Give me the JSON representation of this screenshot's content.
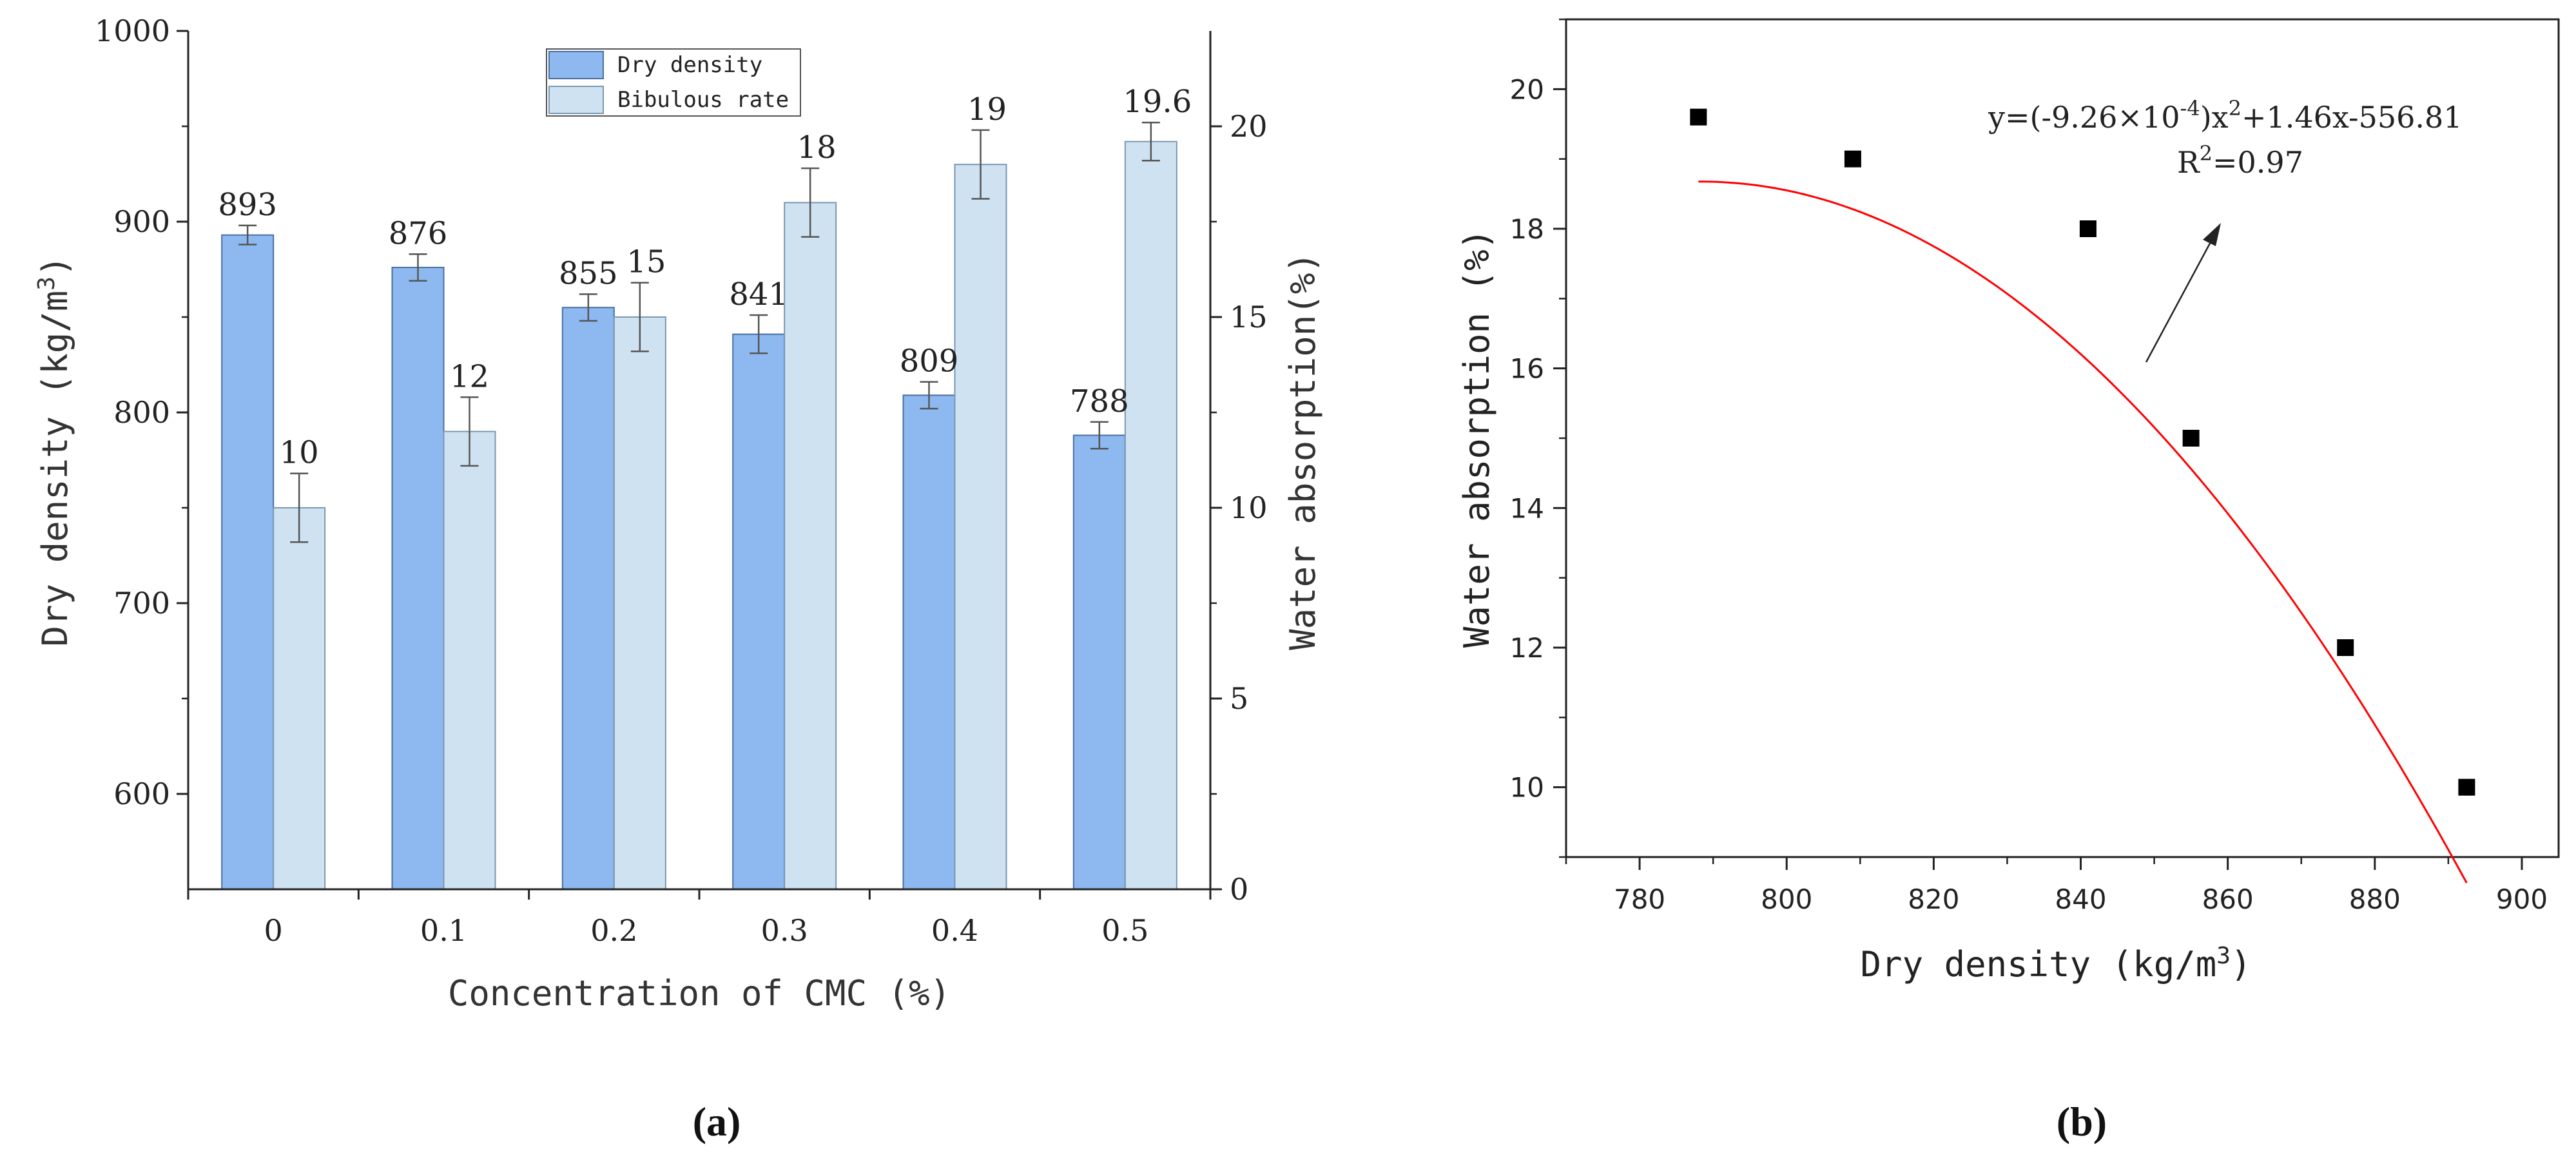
{
  "chart_data": [
    {
      "id": "a",
      "type": "bar",
      "panel_label": "(a)",
      "categories": [
        "0",
        "0.1",
        "0.2",
        "0.3",
        "0.4",
        "0.5"
      ],
      "xlabel": "Concentration of CMC (%)",
      "ylabel_left": "Dry density (kg/m3)",
      "ylabel_right": "Water absorption(%)",
      "ylim_left": [
        550,
        1000
      ],
      "ylim_right": [
        0,
        22.5
      ],
      "yticks_left": [
        600,
        700,
        800,
        900,
        1000
      ],
      "yticks_right": [
        0,
        5,
        10,
        15,
        20
      ],
      "series": [
        {
          "name": "Dry density",
          "axis": "left",
          "color": "#8db9f0",
          "values": [
            893,
            876,
            855,
            841,
            809,
            788
          ],
          "errors": [
            5,
            7,
            7,
            10,
            7,
            7
          ],
          "labels": [
            "893",
            "876",
            "855",
            "841",
            "809",
            "788"
          ]
        },
        {
          "name": "Bibulous rate",
          "axis": "right",
          "color": "#cfe2f1",
          "values": [
            10,
            12,
            15,
            18,
            19,
            19.6
          ],
          "errors": [
            0.9,
            0.9,
            0.9,
            0.9,
            0.9,
            0.5
          ],
          "labels": [
            "10",
            "12",
            "15",
            "18",
            "19",
            "19.6"
          ]
        }
      ]
    },
    {
      "id": "b",
      "type": "scatter",
      "panel_label": "(b)",
      "xlabel": "Dry density (kg/m3)",
      "ylabel": "Water absorption (%)",
      "xlim": [
        770,
        905
      ],
      "ylim": [
        9,
        21
      ],
      "xticks": [
        780,
        800,
        820,
        840,
        860,
        880,
        900
      ],
      "yticks": [
        10,
        12,
        14,
        16,
        18,
        20
      ],
      "points": [
        {
          "x": 788,
          "y": 19.6
        },
        {
          "x": 809,
          "y": 19
        },
        {
          "x": 841,
          "y": 18
        },
        {
          "x": 855,
          "y": 15
        },
        {
          "x": 876,
          "y": 12
        },
        {
          "x": 892.5,
          "y": 10
        }
      ],
      "fit": {
        "type": "quadratic",
        "a": -0.000926,
        "b": 1.46,
        "c": -556.81,
        "x_range": [
          788,
          892.5
        ],
        "color": "#ff0000"
      },
      "annotation": {
        "equation": "y=(-9.26×10-4)x2+1.46x-556.81",
        "r2": "R2=0.97"
      }
    }
  ]
}
